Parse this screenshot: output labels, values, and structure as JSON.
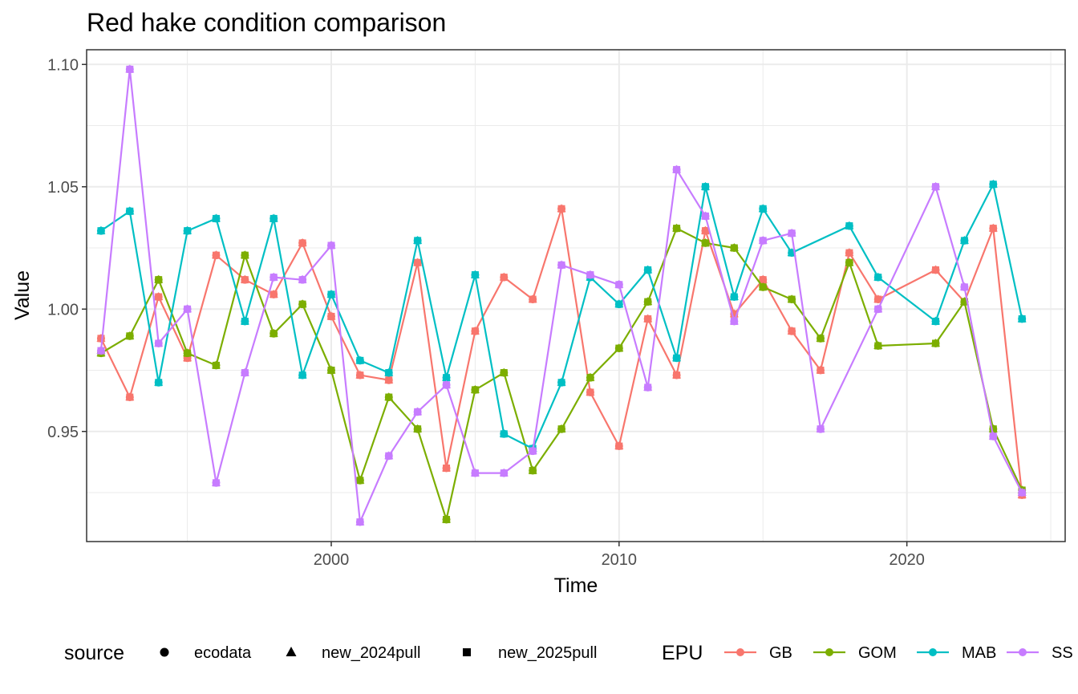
{
  "chart_data": {
    "type": "line",
    "title": "Red hake condition comparison",
    "xlabel": "Time",
    "ylabel": "Value",
    "xlim": [
      1991.5,
      2025.5
    ],
    "ylim": [
      0.905,
      1.106
    ],
    "x_ticks": [
      2000,
      2010,
      2020
    ],
    "y_ticks": [
      0.95,
      1.0,
      1.05,
      1.1
    ],
    "y_tick_labels": [
      "0.95",
      "1.00",
      "1.05",
      "1.10"
    ],
    "grid": true,
    "legend_position": "bottom",
    "legend": {
      "source_title": "source",
      "sources": [
        "ecodata",
        "new_2024pull",
        "new_2025pull"
      ],
      "epu_title": "EPU",
      "epus": [
        "GB",
        "GOM",
        "MAB",
        "SS"
      ]
    },
    "colors": {
      "GB": "#F8766D",
      "GOM": "#7CAE00",
      "MAB": "#00BFC4",
      "SS": "#C77CFF"
    },
    "series": [
      {
        "name": "GB",
        "x": [
          1992,
          1993,
          1994,
          1995,
          1996,
          1997,
          1998,
          1999,
          2000,
          2001,
          2002,
          2003,
          2004,
          2005,
          2006,
          2007,
          2008,
          2009,
          2010,
          2011,
          2012,
          2013,
          2014,
          2015,
          2016,
          2017,
          2018,
          2019,
          2021,
          2022,
          2023,
          2024
        ],
        "y": [
          0.988,
          0.964,
          1.005,
          0.98,
          1.022,
          1.012,
          1.006,
          1.027,
          0.997,
          0.973,
          0.971,
          1.019,
          0.935,
          0.991,
          1.013,
          1.004,
          1.041,
          0.966,
          0.944,
          0.996,
          0.973,
          1.032,
          0.998,
          1.012,
          0.991,
          0.975,
          1.023,
          1.004,
          1.016,
          1.003,
          1.033,
          0.924
        ]
      },
      {
        "name": "GOM",
        "x": [
          1992,
          1993,
          1994,
          1995,
          1996,
          1997,
          1998,
          1999,
          2000,
          2001,
          2002,
          2003,
          2004,
          2005,
          2006,
          2007,
          2008,
          2009,
          2010,
          2011,
          2012,
          2013,
          2014,
          2015,
          2016,
          2017,
          2018,
          2019,
          2021,
          2022,
          2023,
          2024
        ],
        "y": [
          0.982,
          0.989,
          1.012,
          0.982,
          0.977,
          1.022,
          0.99,
          1.002,
          0.975,
          0.93,
          0.964,
          0.951,
          0.914,
          0.967,
          0.974,
          0.934,
          0.951,
          0.972,
          0.984,
          1.003,
          1.033,
          1.027,
          1.025,
          1.009,
          1.004,
          0.988,
          1.019,
          0.985,
          0.986,
          1.003,
          0.951,
          0.926
        ]
      },
      {
        "name": "MAB",
        "x": [
          1992,
          1993,
          1994,
          1995,
          1996,
          1997,
          1998,
          1999,
          2000,
          2001,
          2002,
          2003,
          2004,
          2005,
          2006,
          2007,
          2008,
          2009,
          2010,
          2011,
          2012,
          2013,
          2014,
          2015,
          2016,
          2018,
          2019,
          2021,
          2022,
          2023,
          2024
        ],
        "y": [
          1.032,
          1.04,
          0.97,
          1.032,
          1.037,
          0.995,
          1.037,
          0.973,
          1.006,
          0.979,
          0.974,
          1.028,
          0.972,
          1.014,
          0.949,
          0.943,
          0.97,
          1.013,
          1.002,
          1.016,
          0.98,
          1.05,
          1.005,
          1.041,
          1.023,
          1.034,
          1.013,
          0.995,
          1.028,
          1.051,
          0.996
        ]
      },
      {
        "name": "SS",
        "x": [
          1992,
          1993,
          1994,
          1995,
          1996,
          1997,
          1998,
          1999,
          2000,
          2001,
          2002,
          2003,
          2004,
          2005,
          2006,
          2007,
          2008,
          2009,
          2010,
          2011,
          2012,
          2013,
          2014,
          2015,
          2016,
          2017,
          2019,
          2021,
          2022,
          2023,
          2024
        ],
        "y": [
          0.983,
          1.098,
          0.986,
          1.0,
          0.929,
          0.974,
          1.013,
          1.012,
          1.026,
          0.913,
          0.94,
          0.958,
          0.969,
          0.933,
          0.933,
          0.942,
          1.018,
          1.014,
          1.01,
          0.968,
          1.057,
          1.038,
          0.995,
          1.028,
          1.031,
          0.951,
          1.0,
          1.05,
          1.009,
          0.948,
          0.925
        ]
      }
    ]
  }
}
